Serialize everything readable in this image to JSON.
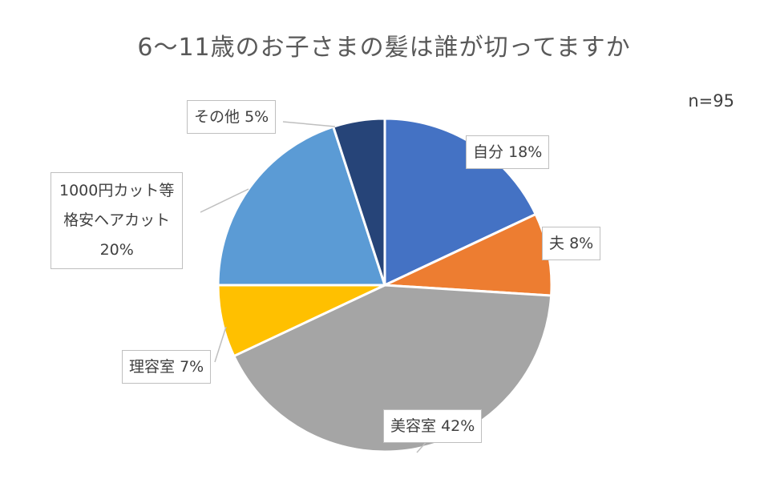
{
  "chart_data": {
    "type": "pie",
    "title": "6～11歳のお子さまの髪は誰が切ってますか",
    "sample_size": "n=95",
    "slices": [
      {
        "name": "自分",
        "value_label": "18%",
        "value": 18,
        "color": "#4472C4"
      },
      {
        "name": "夫",
        "value_label": "8%",
        "value": 8,
        "color": "#ED7D31"
      },
      {
        "name": "美容室",
        "value_label": "42%",
        "value": 42,
        "color": "#A5A5A5"
      },
      {
        "name": "理容室",
        "value_label": "7%",
        "value": 7,
        "color": "#FFC000"
      },
      {
        "name_lines": [
          "1000円カット等",
          "格安ヘアカット"
        ],
        "value_label": "20%",
        "value": 20,
        "color": "#5B9BD5"
      },
      {
        "name": "その他",
        "value_label": "5%",
        "value": 5,
        "color": "#264478"
      }
    ]
  }
}
